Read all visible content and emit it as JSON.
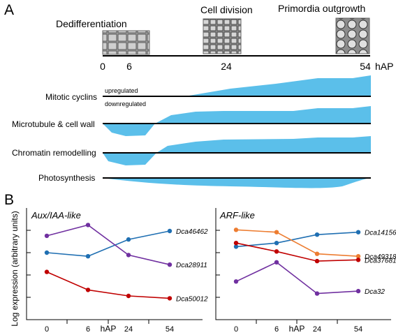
{
  "panel_a": {
    "label": "A",
    "stages": [
      "Dedifferentiation",
      "Cell division",
      "Primordia outgrowth"
    ],
    "timeline": {
      "ticks": [
        "0",
        "6",
        "24",
        "54"
      ],
      "unit": "hAP"
    },
    "tracks": [
      {
        "label": "Mitotic cyclins",
        "up_label": "upregulated",
        "down_label": "downregulated"
      },
      {
        "label": "Microtubule & cell wall"
      },
      {
        "label": "Chromatin remodelling"
      },
      {
        "label": "Photosynthesis"
      }
    ],
    "fill_color": "#5bbfea"
  },
  "panel_b": {
    "label": "B",
    "ylabel": "Log expression (arbitrary units)",
    "xlabel": "hAP"
  },
  "chart_data": [
    {
      "type": "line",
      "title": "Aux/IAA-like",
      "xlabel": "hAP",
      "ylabel": "Log expression (arbitrary units)",
      "categories": [
        "0",
        "6",
        "24",
        "54"
      ],
      "series": [
        {
          "name": "Dca46462",
          "color": "#1f6fb2",
          "values": [
            3.2,
            3.05,
            3.75,
            4.1
          ]
        },
        {
          "name": "Dca28911",
          "color": "#7030a0",
          "values": [
            3.9,
            4.35,
            3.1,
            2.7
          ]
        },
        {
          "name": "Dca50012",
          "color": "#c00000",
          "values": [
            2.4,
            1.65,
            1.4,
            1.3
          ]
        }
      ],
      "ylim": [
        0.5,
        5
      ],
      "grid": false
    },
    {
      "type": "line",
      "title": "ARF-like",
      "xlabel": "hAP",
      "ylabel": "Log expression (arbitrary units)",
      "categories": [
        "0",
        "6",
        "24",
        "54"
      ],
      "series": [
        {
          "name": "Dca14156",
          "color": "#1f6fb2",
          "values": [
            3.45,
            3.6,
            3.95,
            4.05
          ]
        },
        {
          "name": "Dca49318",
          "color": "#ed7d31",
          "values": [
            4.15,
            4.05,
            3.15,
            3.05
          ]
        },
        {
          "name": "Dca37681",
          "color": "#c00000",
          "values": [
            3.6,
            3.25,
            2.85,
            2.9
          ]
        },
        {
          "name": "Dca32",
          "color": "#7030a0",
          "values": [
            2.0,
            2.8,
            1.5,
            1.6
          ]
        }
      ],
      "ylim": [
        0.5,
        5
      ],
      "grid": false
    }
  ]
}
